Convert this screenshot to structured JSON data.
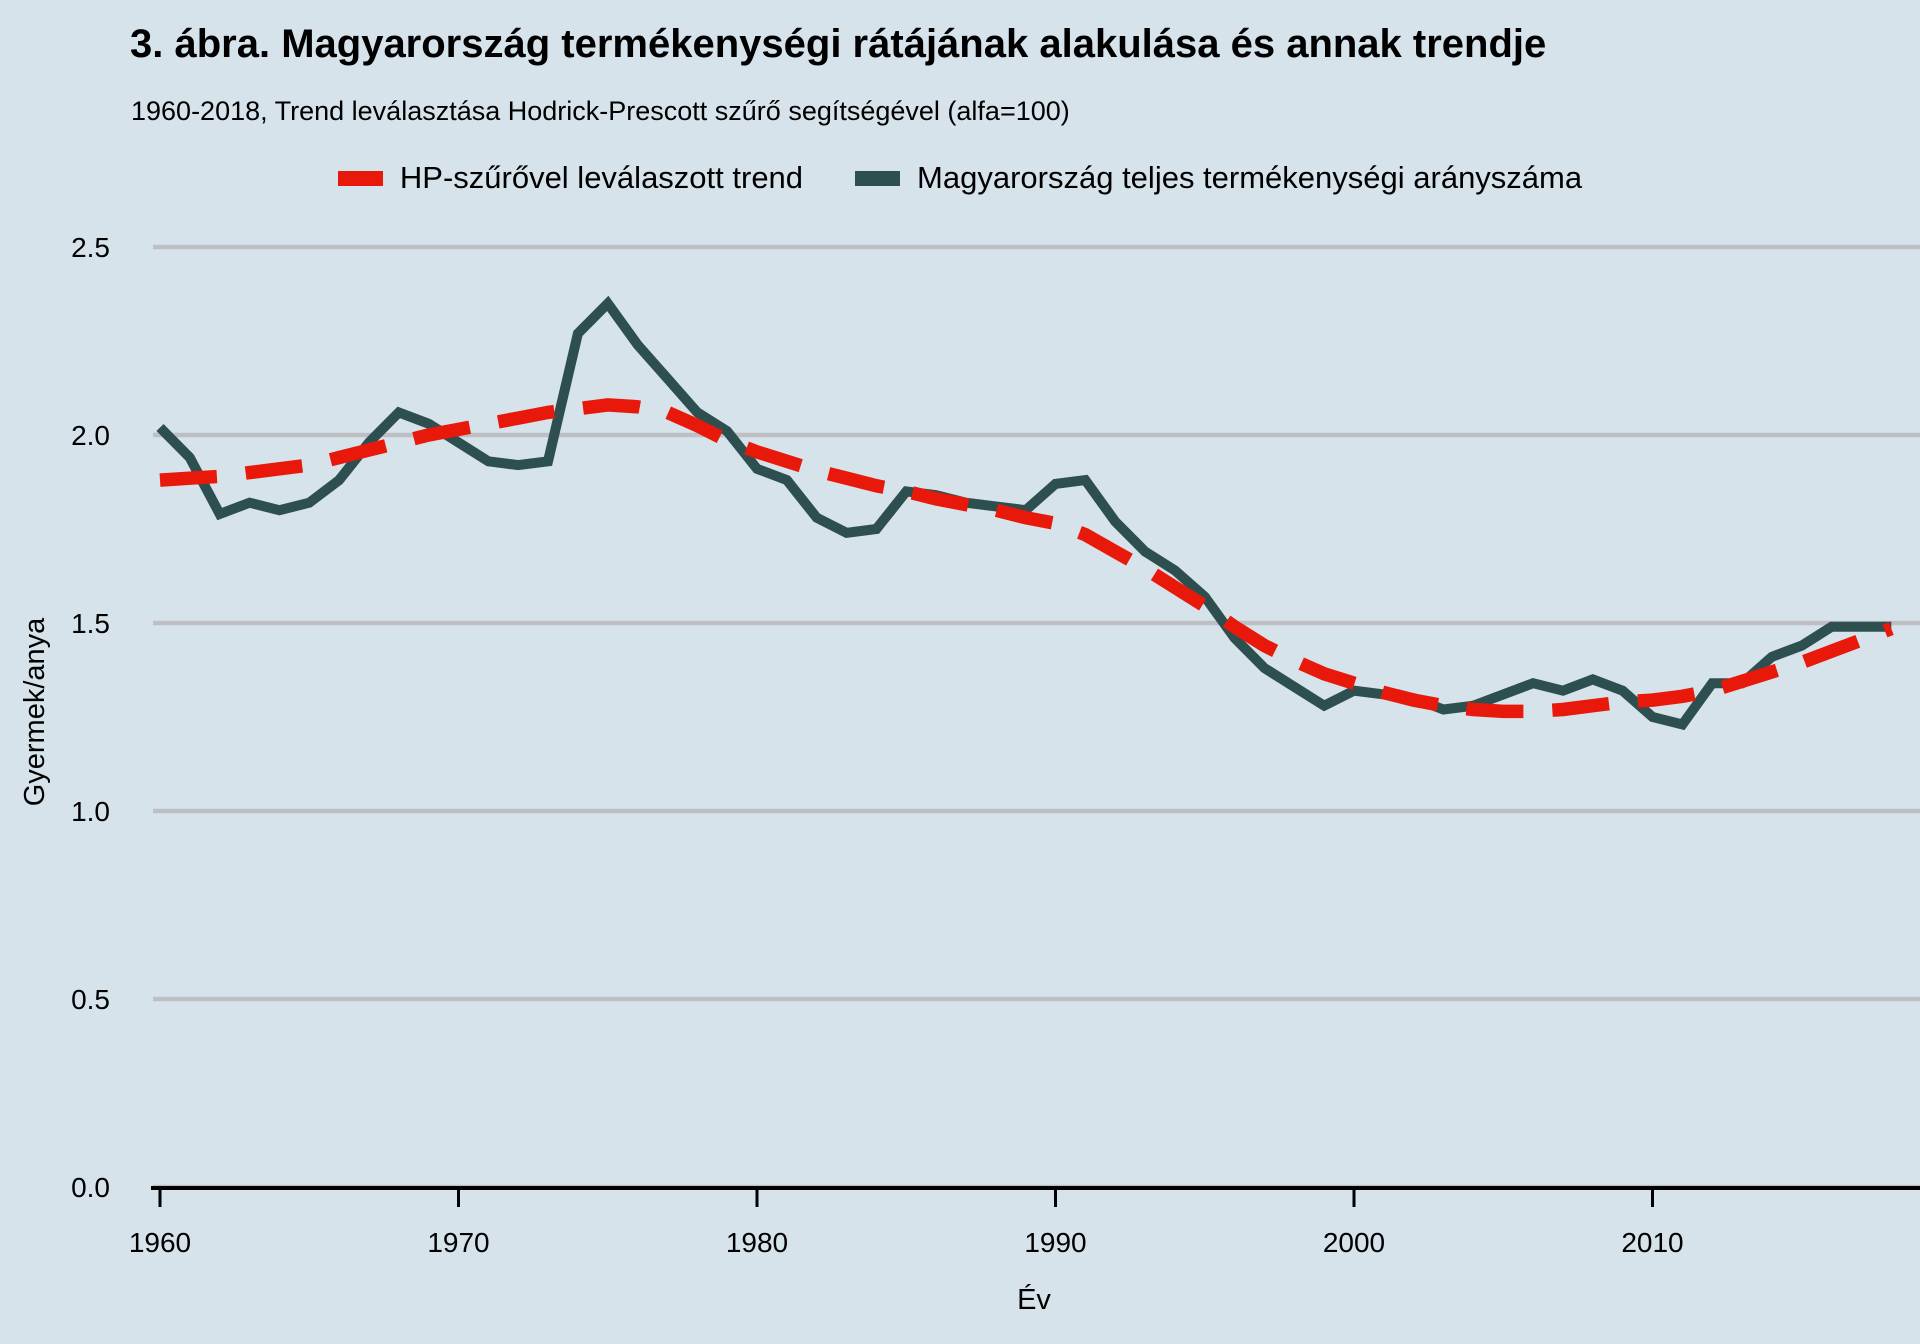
{
  "figure": {
    "title": "3. ábra. Magyarország termékenységi rátájának alakulása és annak trendje",
    "subtitle": "1960-2018, Trend leválasztása Hodrick-Prescott szűrő segítségével (alfa=100)"
  },
  "legend": {
    "items": [
      {
        "label": "HP-szűrővel leválaszott trend",
        "color": "#e8190a",
        "series": "trend"
      },
      {
        "label": "Magyarország teljes termékenységi arányszáma",
        "color": "#2d4f4f",
        "series": "tfr"
      }
    ]
  },
  "colors": {
    "background": "#d6e3ea",
    "gridline": "#bdbfc2",
    "axis": "#000000",
    "trend_red": "#e8190a",
    "tfr_teal": "#2d4f4f",
    "text": "#000000"
  },
  "chart_data": {
    "type": "line",
    "title": "3. ábra. Magyarország termékenységi rátájának alakulása és annak trendje",
    "subtitle": "1960-2018, Trend leválasztása Hodrick-Prescott szűrő segítségével (alfa=100)",
    "xlabel": "Év",
    "ylabel": "Gyermek/anya",
    "xlim": [
      1960,
      2018
    ],
    "ylim": [
      0.0,
      2.5
    ],
    "grid": "horizontal-major-only",
    "legend_position": "top-center",
    "x_ticks": [
      1960,
      1970,
      1980,
      1990,
      2000,
      2010
    ],
    "y_ticks": [
      {
        "value": 0.0,
        "label": "0.0"
      },
      {
        "value": 0.5,
        "label": "0.5"
      },
      {
        "value": 1.0,
        "label": "1.0"
      },
      {
        "value": 1.5,
        "label": "1.5"
      },
      {
        "value": 2.0,
        "label": "2.0"
      },
      {
        "value": 2.5,
        "label": "2.5"
      }
    ],
    "x": [
      1960,
      1961,
      1962,
      1963,
      1964,
      1965,
      1966,
      1967,
      1968,
      1969,
      1970,
      1971,
      1972,
      1973,
      1974,
      1975,
      1976,
      1977,
      1978,
      1979,
      1980,
      1981,
      1982,
      1983,
      1984,
      1985,
      1986,
      1987,
      1988,
      1989,
      1990,
      1991,
      1992,
      1993,
      1994,
      1995,
      1996,
      1997,
      1998,
      1999,
      2000,
      2001,
      2002,
      2003,
      2004,
      2005,
      2006,
      2007,
      2008,
      2009,
      2010,
      2011,
      2012,
      2013,
      2014,
      2015,
      2016,
      2017,
      2018
    ],
    "series": [
      {
        "name": "Magyarország teljes termékenységi arányszáma",
        "style": "solid",
        "color": "#2d4f4f",
        "values": [
          2.02,
          1.94,
          1.79,
          1.82,
          1.8,
          1.82,
          1.88,
          1.98,
          2.06,
          2.03,
          1.98,
          1.93,
          1.92,
          1.93,
          2.27,
          2.35,
          2.24,
          2.15,
          2.06,
          2.01,
          1.91,
          1.88,
          1.78,
          1.74,
          1.75,
          1.85,
          1.84,
          1.82,
          1.81,
          1.8,
          1.87,
          1.88,
          1.77,
          1.69,
          1.64,
          1.57,
          1.46,
          1.38,
          1.33,
          1.28,
          1.32,
          1.31,
          1.3,
          1.27,
          1.28,
          1.31,
          1.34,
          1.32,
          1.35,
          1.32,
          1.25,
          1.23,
          1.34,
          1.34,
          1.41,
          1.44,
          1.49,
          1.49,
          1.49
        ]
      },
      {
        "name": "HP-szűrővel leválaszott trend",
        "style": "dashed",
        "color": "#e8190a",
        "values": [
          1.88,
          1.885,
          1.89,
          1.9,
          1.91,
          1.92,
          1.94,
          1.96,
          1.98,
          2.0,
          2.015,
          2.03,
          2.045,
          2.06,
          2.07,
          2.08,
          2.075,
          2.06,
          2.025,
          1.985,
          1.955,
          1.93,
          1.905,
          1.885,
          1.865,
          1.85,
          1.83,
          1.815,
          1.8,
          1.78,
          1.765,
          1.735,
          1.69,
          1.645,
          1.595,
          1.545,
          1.49,
          1.44,
          1.4,
          1.365,
          1.34,
          1.315,
          1.295,
          1.28,
          1.27,
          1.265,
          1.265,
          1.27,
          1.28,
          1.29,
          1.295,
          1.305,
          1.32,
          1.345,
          1.37,
          1.395,
          1.425,
          1.455,
          1.485
        ]
      }
    ]
  }
}
